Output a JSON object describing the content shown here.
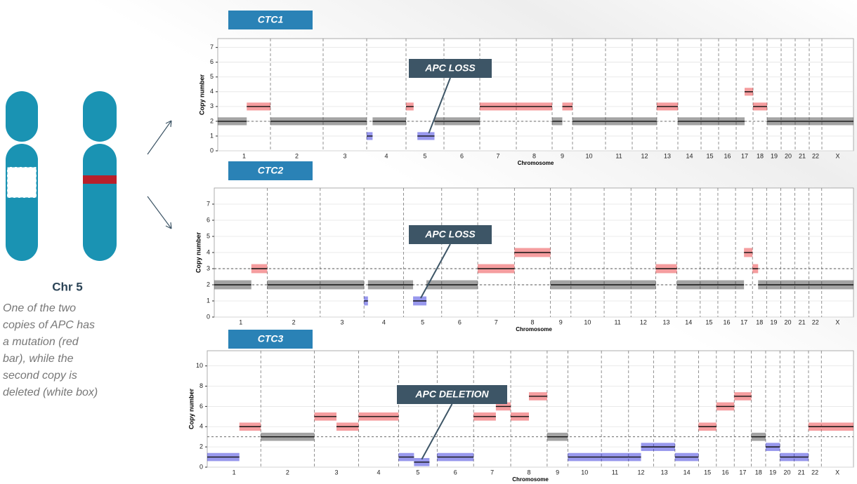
{
  "left_panel": {
    "label": "Chr 5",
    "caption": [
      "One of the two",
      "copies of APC has",
      "a mutation (red",
      "bar), while the",
      "second copy is",
      "deleted (white box)"
    ]
  },
  "chart_data": [
    {
      "type": "segment",
      "title": "CTC1",
      "annotation": "APC LOSS",
      "xlabel": "Chromosome",
      "ylabel": "Copy number",
      "categories": [
        "1",
        "2",
        "3",
        "4",
        "5",
        "6",
        "7",
        "8",
        "9",
        "10",
        "11",
        "12",
        "13",
        "14",
        "15",
        "16",
        "17",
        "18",
        "19",
        "20",
        "21",
        "22",
        "X"
      ],
      "ylim": [
        0,
        7.6
      ],
      "yticks": [
        0,
        1,
        2,
        3,
        4,
        5,
        6,
        7
      ],
      "reference_lines": [
        2
      ],
      "colors": {
        "gain": "#e8262b",
        "neutral": "#333333",
        "loss": "#1a1ad8"
      },
      "segments": [
        {
          "start": 0,
          "end": 0.55,
          "value": 2
        },
        {
          "start": 0.55,
          "end": 1,
          "value": 3
        },
        {
          "start": 1,
          "end": 3,
          "value": 2
        },
        {
          "start": 3,
          "end": 3.15,
          "value": 1
        },
        {
          "start": 3.15,
          "end": 4,
          "value": 2
        },
        {
          "start": 4,
          "end": 4.2,
          "value": 3
        },
        {
          "start": 4.3,
          "end": 4.75,
          "value": 1
        },
        {
          "start": 4.75,
          "end": 6,
          "value": 2
        },
        {
          "start": 6,
          "end": 8,
          "value": 3
        },
        {
          "start": 8,
          "end": 8.5,
          "value": 2
        },
        {
          "start": 8.5,
          "end": 9,
          "value": 3
        },
        {
          "start": 9,
          "end": 12,
          "value": 2
        },
        {
          "start": 12,
          "end": 13,
          "value": 3
        },
        {
          "start": 13,
          "end": 16.5,
          "value": 2
        },
        {
          "start": 16.5,
          "end": 17,
          "value": 4
        },
        {
          "start": 17,
          "end": 18,
          "value": 3
        },
        {
          "start": 18,
          "end": 23,
          "value": 2
        }
      ]
    },
    {
      "type": "segment",
      "title": "CTC2",
      "annotation": "APC LOSS",
      "xlabel": "Chromosome",
      "ylabel": "Copy number",
      "categories": [
        "1",
        "2",
        "3",
        "4",
        "5",
        "6",
        "7",
        "8",
        "9",
        "10",
        "11",
        "12",
        "13",
        "14",
        "15",
        "16",
        "17",
        "18",
        "19",
        "20",
        "21",
        "22",
        "X"
      ],
      "ylim": [
        0,
        8
      ],
      "yticks": [
        0,
        1,
        2,
        3,
        4,
        5,
        6,
        7
      ],
      "reference_lines": [
        2,
        3
      ],
      "colors": {
        "gain": "#e8262b",
        "neutral": "#333333",
        "loss": "#1a1ad8"
      },
      "segments": [
        {
          "start": 0,
          "end": 0.7,
          "value": 2
        },
        {
          "start": 0.7,
          "end": 1,
          "value": 3
        },
        {
          "start": 1,
          "end": 3,
          "value": 2
        },
        {
          "start": 3,
          "end": 3.1,
          "value": 1
        },
        {
          "start": 3.1,
          "end": 4.25,
          "value": 2
        },
        {
          "start": 4.25,
          "end": 4.6,
          "value": 1
        },
        {
          "start": 4.6,
          "end": 6,
          "value": 2
        },
        {
          "start": 6,
          "end": 7,
          "value": 3
        },
        {
          "start": 7,
          "end": 8,
          "value": 4
        },
        {
          "start": 8,
          "end": 12,
          "value": 2
        },
        {
          "start": 12,
          "end": 13,
          "value": 3
        },
        {
          "start": 13,
          "end": 16.5,
          "value": 2
        },
        {
          "start": 16.5,
          "end": 17,
          "value": 4
        },
        {
          "start": 17,
          "end": 17.4,
          "value": 3
        },
        {
          "start": 17.4,
          "end": 22,
          "value": 2
        },
        {
          "start": 22,
          "end": 23,
          "value": 2
        }
      ]
    },
    {
      "type": "segment",
      "title": "CTC3",
      "annotation": "APC DELETION",
      "xlabel": "Chromosome",
      "ylabel": "Copy number",
      "categories": [
        "1",
        "2",
        "3",
        "4",
        "5",
        "6",
        "7",
        "8",
        "9",
        "10",
        "11",
        "12",
        "13",
        "14",
        "15",
        "16",
        "17",
        "18",
        "19",
        "20",
        "21",
        "22",
        "X"
      ],
      "ylim": [
        0,
        11.5
      ],
      "yticks": [
        0,
        2,
        4,
        6,
        8,
        10
      ],
      "reference_lines": [
        3
      ],
      "colors": {
        "gain": "#e8262b",
        "neutral": "#333333",
        "loss": "#1a1ad8"
      },
      "segments": [
        {
          "start": 0,
          "end": 0.6,
          "value": 1
        },
        {
          "start": 0.6,
          "end": 1,
          "value": 4
        },
        {
          "start": 1,
          "end": 2,
          "value": 3
        },
        {
          "start": 2,
          "end": 2.5,
          "value": 5
        },
        {
          "start": 2.5,
          "end": 3,
          "value": 4
        },
        {
          "start": 3,
          "end": 4,
          "value": 5
        },
        {
          "start": 4,
          "end": 4.4,
          "value": 1
        },
        {
          "start": 4.4,
          "end": 4.8,
          "value": 0.5
        },
        {
          "start": 5,
          "end": 6,
          "value": 1
        },
        {
          "start": 6,
          "end": 6.6,
          "value": 5
        },
        {
          "start": 6.6,
          "end": 7,
          "value": 6
        },
        {
          "start": 7,
          "end": 7.5,
          "value": 5
        },
        {
          "start": 7.5,
          "end": 8,
          "value": 7
        },
        {
          "start": 8,
          "end": 9,
          "value": 3
        },
        {
          "start": 9,
          "end": 10,
          "value": 1
        },
        {
          "start": 10,
          "end": 11,
          "value": 1
        },
        {
          "start": 11,
          "end": 11.5,
          "value": 1
        },
        {
          "start": 11.5,
          "end": 12,
          "value": 2
        },
        {
          "start": 12,
          "end": 13,
          "value": 2
        },
        {
          "start": 13,
          "end": 14,
          "value": 1
        },
        {
          "start": 14,
          "end": 15,
          "value": 4
        },
        {
          "start": 15,
          "end": 16,
          "value": 6
        },
        {
          "start": 16,
          "end": 17,
          "value": 7
        },
        {
          "start": 17,
          "end": 18,
          "value": 3
        },
        {
          "start": 18,
          "end": 19,
          "value": 2
        },
        {
          "start": 19,
          "end": 21,
          "value": 1
        },
        {
          "start": 21,
          "end": 22,
          "value": 4
        },
        {
          "start": 22,
          "end": 23,
          "value": 4
        }
      ]
    }
  ]
}
